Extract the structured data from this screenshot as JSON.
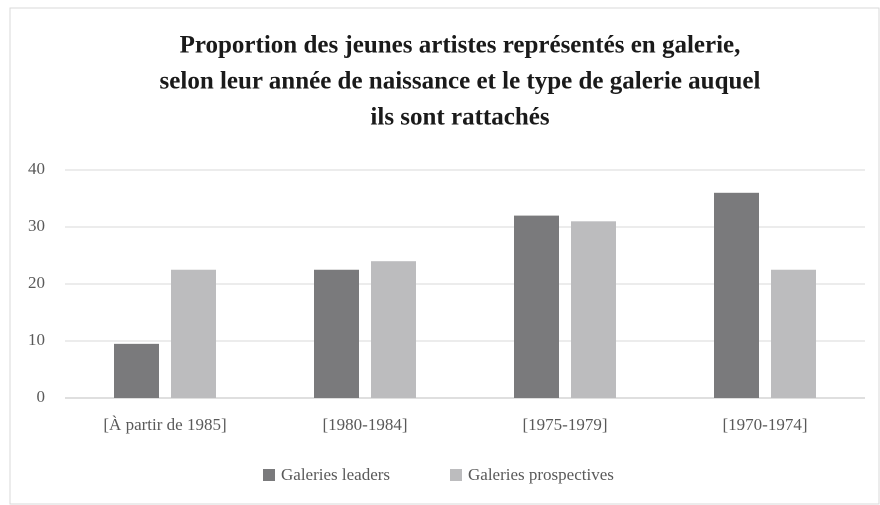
{
  "chart_data": {
    "type": "bar",
    "title": [
      "Proportion des jeunes artistes représentés en galerie,",
      "selon leur année de naissance et le type de galerie auquel",
      "ils sont rattachés"
    ],
    "categories": [
      "[À partir de 1985]",
      "[1980-1984]",
      "[1975-1979]",
      "[1970-1974]"
    ],
    "series": [
      {
        "name": "Galeries leaders",
        "color": "#7a7a7c",
        "values": [
          9.5,
          22.5,
          32,
          36
        ]
      },
      {
        "name": "Galeries prospectives",
        "color": "#bcbcbe",
        "values": [
          22.5,
          24,
          31,
          22.5
        ]
      }
    ],
    "ylim": [
      0,
      40
    ],
    "yticks": [
      0,
      10,
      20,
      30,
      40
    ],
    "grid": true,
    "legend": "bottom"
  }
}
